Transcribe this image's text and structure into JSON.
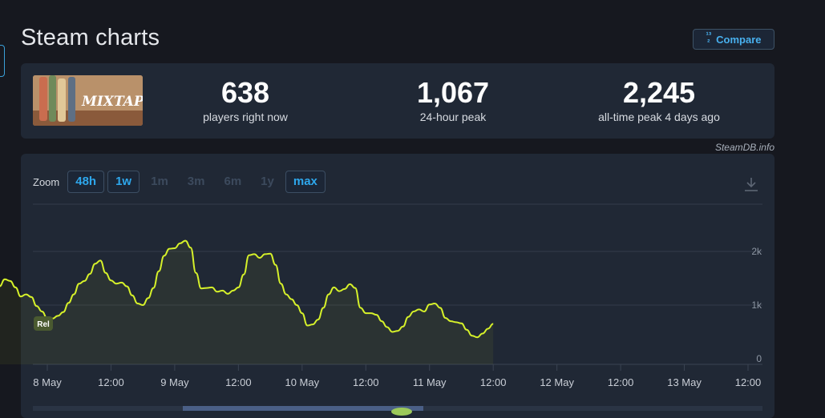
{
  "header": {
    "title": "Steam charts",
    "compare_label": "Compare",
    "compare_icon": "123"
  },
  "game": {
    "name": "MIXTAPE"
  },
  "stats": [
    {
      "value": "638",
      "label": "players right now"
    },
    {
      "value": "1,067",
      "label": "24-hour peak"
    },
    {
      "value": "2,245",
      "label": "all-time peak 4 days ago"
    }
  ],
  "credit": "SteamDB.info",
  "zoom": {
    "label": "Zoom",
    "options": [
      {
        "label": "48h",
        "active": true
      },
      {
        "label": "1w",
        "active": true
      },
      {
        "label": "1m",
        "active": false
      },
      {
        "label": "3m",
        "active": false
      },
      {
        "label": "6m",
        "active": false
      },
      {
        "label": "1y",
        "active": false
      },
      {
        "label": "max",
        "active": true
      }
    ]
  },
  "colors": {
    "line": "#d6f12a",
    "active_zoom": "#2ea7ec",
    "panel": "#202835",
    "background": "#16181f"
  },
  "chart_data": {
    "type": "line",
    "title": "",
    "ylabel": "",
    "ylim": [
      0,
      2800
    ],
    "yticks": [
      {
        "value": 0,
        "label": "0"
      },
      {
        "value": 1000,
        "label": "1k"
      },
      {
        "value": 2000,
        "label": "2k"
      }
    ],
    "xlim": [
      0,
      140
    ],
    "xticks": [
      {
        "t": 12,
        "label": "8 May"
      },
      {
        "t": 24,
        "label": "12:00"
      },
      {
        "t": 36,
        "label": "9 May"
      },
      {
        "t": 48,
        "label": "12:00"
      },
      {
        "t": 60,
        "label": "10 May"
      },
      {
        "t": 72,
        "label": "12:00"
      },
      {
        "t": 84,
        "label": "11 May"
      },
      {
        "t": 96,
        "label": "12:00"
      },
      {
        "t": 108,
        "label": "12 May"
      },
      {
        "t": 120,
        "label": "12:00"
      },
      {
        "t": 132,
        "label": "13 May"
      },
      {
        "t": 144,
        "label": "12:00"
      }
    ],
    "grid": true,
    "series": [
      {
        "label": "Rel",
        "points": [
          [
            0,
            480
          ],
          [
            1,
            850
          ],
          [
            2,
            1080
          ],
          [
            3,
            1350
          ],
          [
            4,
            1480
          ],
          [
            5,
            1450
          ],
          [
            6,
            1330
          ],
          [
            7,
            1160
          ],
          [
            8,
            1200
          ],
          [
            9,
            1150
          ],
          [
            10,
            980
          ],
          [
            11,
            880
          ],
          [
            12,
            750
          ],
          [
            13,
            750
          ],
          [
            14,
            800
          ],
          [
            15,
            870
          ],
          [
            16,
            1040
          ],
          [
            17,
            1200
          ],
          [
            18,
            1400
          ],
          [
            19,
            1450
          ],
          [
            20,
            1580
          ],
          [
            21,
            1770
          ],
          [
            22,
            1830
          ],
          [
            23,
            1600
          ],
          [
            24,
            1460
          ],
          [
            25,
            1400
          ],
          [
            26,
            1420
          ],
          [
            27,
            1350
          ],
          [
            28,
            1180
          ],
          [
            29,
            1030
          ],
          [
            30,
            1000
          ],
          [
            31,
            1130
          ],
          [
            32,
            1320
          ],
          [
            33,
            1630
          ],
          [
            34,
            1920
          ],
          [
            35,
            2050
          ],
          [
            36,
            2060
          ],
          [
            37,
            2150
          ],
          [
            38,
            2200
          ],
          [
            39,
            2070
          ],
          [
            40,
            1600
          ],
          [
            41,
            1310
          ],
          [
            42,
            1320
          ],
          [
            43,
            1330
          ],
          [
            44,
            1250
          ],
          [
            45,
            1270
          ],
          [
            46,
            1210
          ],
          [
            47,
            1270
          ],
          [
            48,
            1330
          ],
          [
            49,
            1570
          ],
          [
            50,
            1930
          ],
          [
            51,
            1950
          ],
          [
            52,
            1880
          ],
          [
            53,
            1950
          ],
          [
            54,
            1960
          ],
          [
            55,
            1750
          ],
          [
            56,
            1400
          ],
          [
            57,
            1200
          ],
          [
            58,
            1110
          ],
          [
            59,
            1000
          ],
          [
            60,
            850
          ],
          [
            61,
            620
          ],
          [
            62,
            640
          ],
          [
            63,
            730
          ],
          [
            64,
            950
          ],
          [
            65,
            1200
          ],
          [
            66,
            1330
          ],
          [
            67,
            1260
          ],
          [
            68,
            1300
          ],
          [
            69,
            1390
          ],
          [
            70,
            1320
          ],
          [
            71,
            950
          ],
          [
            72,
            850
          ],
          [
            73,
            850
          ],
          [
            74,
            820
          ],
          [
            75,
            700
          ],
          [
            76,
            590
          ],
          [
            77,
            500
          ],
          [
            78,
            520
          ],
          [
            79,
            600
          ],
          [
            80,
            780
          ],
          [
            81,
            880
          ],
          [
            82,
            920
          ],
          [
            83,
            880
          ],
          [
            84,
            1010
          ],
          [
            85,
            1030
          ],
          [
            86,
            950
          ],
          [
            87,
            760
          ],
          [
            88,
            700
          ],
          [
            89,
            680
          ],
          [
            90,
            660
          ],
          [
            91,
            540
          ],
          [
            92,
            430
          ],
          [
            93,
            400
          ],
          [
            94,
            470
          ],
          [
            95,
            560
          ],
          [
            96,
            650
          ]
        ]
      }
    ]
  }
}
